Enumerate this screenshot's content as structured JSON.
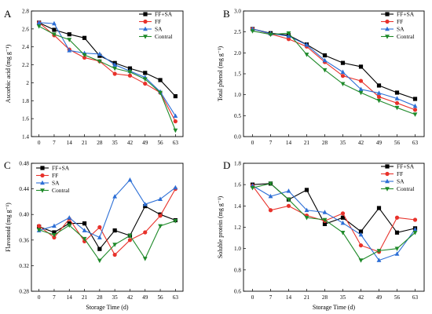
{
  "chart_data": [
    {
      "type": "line",
      "panel_label": "A",
      "ylabel": "Ascorbic acid (mg g⁻¹)",
      "xlabel": "",
      "x": [
        0,
        7,
        14,
        21,
        28,
        35,
        42,
        49,
        56,
        63
      ],
      "ylim": [
        1.4,
        2.8
      ],
      "yticks": [
        1.4,
        1.6,
        1.8,
        2.0,
        2.2,
        2.4,
        2.6,
        2.8
      ],
      "ytick_labels": [
        "1.4",
        "1.6",
        "1.8",
        "2",
        "2.2",
        "2.4",
        "2.6",
        "2.8"
      ],
      "legend": "top-right",
      "series": [
        {
          "name": "FF+SA",
          "color": "#000000",
          "marker": "square",
          "values": [
            2.67,
            2.59,
            2.54,
            2.5,
            2.3,
            2.22,
            2.16,
            2.11,
            2.03,
            1.85
          ]
        },
        {
          "name": "FF",
          "color": "#e8322b",
          "marker": "circle",
          "values": [
            2.67,
            2.53,
            2.37,
            2.28,
            2.24,
            2.1,
            2.08,
            1.99,
            1.89,
            1.57
          ]
        },
        {
          "name": "SA",
          "color": "#2d6fd6",
          "marker": "triangle-up",
          "values": [
            2.67,
            2.66,
            2.36,
            2.33,
            2.32,
            2.2,
            2.13,
            2.06,
            1.9,
            1.63
          ]
        },
        {
          "name": "Contral",
          "color": "#1f8a2a",
          "marker": "triangle-down",
          "values": [
            2.63,
            2.54,
            2.48,
            2.31,
            2.24,
            2.16,
            2.12,
            2.04,
            1.89,
            1.47
          ]
        }
      ]
    },
    {
      "type": "line",
      "panel_label": "B",
      "ylabel": "Total phenol (mg g⁻¹)",
      "xlabel": "",
      "x": [
        0,
        7,
        14,
        21,
        28,
        35,
        42,
        49,
        56,
        63
      ],
      "ylim": [
        0.0,
        3.0
      ],
      "yticks": [
        0.0,
        0.5,
        1.0,
        1.5,
        2.0,
        2.5,
        3.0
      ],
      "ytick_labels": [
        "0.0",
        "0.5",
        "1.0",
        "1.5",
        "2.0",
        "2.5",
        "3.0"
      ],
      "legend": "top-right",
      "series": [
        {
          "name": "FF+SA",
          "color": "#000000",
          "marker": "square",
          "values": [
            2.57,
            2.47,
            2.42,
            2.2,
            1.94,
            1.76,
            1.67,
            1.22,
            1.05,
            0.9
          ]
        },
        {
          "name": "FF",
          "color": "#e8322b",
          "marker": "circle",
          "values": [
            2.57,
            2.45,
            2.33,
            2.15,
            1.78,
            1.45,
            1.33,
            0.95,
            0.8,
            0.64
          ]
        },
        {
          "name": "SA",
          "color": "#2d6fd6",
          "marker": "triangle-up",
          "values": [
            2.57,
            2.46,
            2.4,
            2.19,
            1.82,
            1.54,
            1.13,
            1.04,
            0.91,
            0.73
          ]
        },
        {
          "name": "Contral",
          "color": "#1f8a2a",
          "marker": "triangle-down",
          "values": [
            2.52,
            2.44,
            2.47,
            1.96,
            1.59,
            1.26,
            1.05,
            0.86,
            0.69,
            0.53
          ]
        }
      ]
    },
    {
      "type": "line",
      "panel_label": "C",
      "ylabel": "Flavonoid (mg g⁻¹)",
      "xlabel": "Storage Time (d)",
      "x": [
        0,
        7,
        14,
        21,
        28,
        35,
        42,
        49,
        56,
        63
      ],
      "ylim": [
        0.28,
        0.48
      ],
      "yticks": [
        0.28,
        0.32,
        0.36,
        0.4,
        0.44,
        0.48
      ],
      "ytick_labels": [
        "0.28",
        "0.32",
        "0.36",
        "0.40",
        "0.44",
        "0.48"
      ],
      "legend": "top-left",
      "series": [
        {
          "name": "FF+SA",
          "color": "#000000",
          "marker": "square",
          "values": [
            0.381,
            0.372,
            0.386,
            0.386,
            0.346,
            0.375,
            0.367,
            0.413,
            0.4,
            0.391
          ]
        },
        {
          "name": "FF",
          "color": "#e8322b",
          "marker": "circle",
          "values": [
            0.382,
            0.364,
            0.393,
            0.358,
            0.38,
            0.337,
            0.36,
            0.372,
            0.398,
            0.44
          ]
        },
        {
          "name": "SA",
          "color": "#2d6fd6",
          "marker": "triangle-up",
          "values": [
            0.375,
            0.382,
            0.395,
            0.375,
            0.364,
            0.428,
            0.454,
            0.416,
            0.424,
            0.442
          ]
        },
        {
          "name": "Contral",
          "color": "#1f8a2a",
          "marker": "triangle-down",
          "values": [
            0.376,
            0.368,
            0.383,
            0.362,
            0.328,
            0.353,
            0.367,
            0.331,
            0.382,
            0.39
          ]
        }
      ]
    },
    {
      "type": "line",
      "panel_label": "D",
      "ylabel": "Soluble protein (mg g⁻¹)",
      "xlabel": "Storage Time (d)",
      "x": [
        0,
        7,
        14,
        21,
        28,
        35,
        42,
        49,
        56,
        63
      ],
      "ylim": [
        0.6,
        1.8
      ],
      "yticks": [
        0.6,
        0.8,
        1.0,
        1.2,
        1.4,
        1.6,
        1.8
      ],
      "ytick_labels": [
        "0.6",
        "0.8",
        "1.0",
        "1.2",
        "1.4",
        "1.6",
        "1.8"
      ],
      "legend": "top-right",
      "series": [
        {
          "name": "FF+SA",
          "color": "#000000",
          "marker": "square",
          "values": [
            1.6,
            1.61,
            1.46,
            1.55,
            1.23,
            1.29,
            1.16,
            1.38,
            1.15,
            1.19
          ]
        },
        {
          "name": "FF",
          "color": "#e8322b",
          "marker": "circle",
          "values": [
            1.59,
            1.36,
            1.4,
            1.31,
            1.26,
            1.33,
            1.03,
            0.97,
            1.29,
            1.27
          ]
        },
        {
          "name": "SA",
          "color": "#2d6fd6",
          "marker": "triangle-up",
          "values": [
            1.59,
            1.49,
            1.54,
            1.36,
            1.34,
            1.24,
            1.13,
            0.89,
            0.95,
            1.18
          ]
        },
        {
          "name": "Contral",
          "color": "#1f8a2a",
          "marker": "triangle-down",
          "values": [
            1.57,
            1.61,
            1.46,
            1.29,
            1.27,
            1.15,
            0.89,
            0.98,
            1.0,
            1.15
          ]
        }
      ]
    }
  ]
}
